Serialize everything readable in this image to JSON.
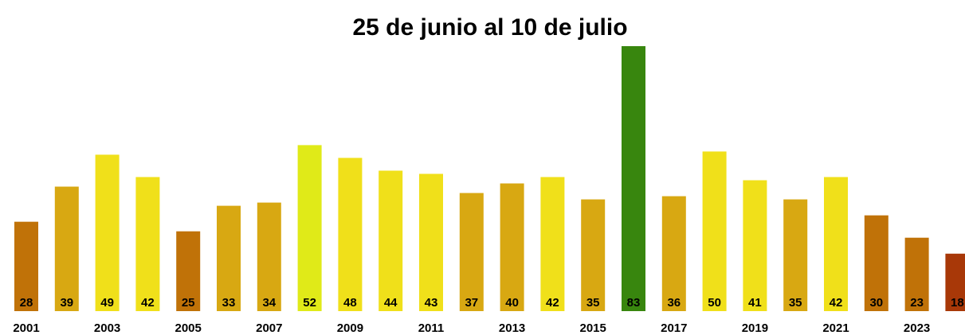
{
  "chart_data": {
    "type": "bar",
    "title": "25 de junio al 10 de julio",
    "categories": [
      "2001",
      null,
      "2003",
      null,
      "2005",
      null,
      "2007",
      null,
      "2009",
      null,
      "2011",
      null,
      "2013",
      null,
      "2015",
      null,
      "2017",
      null,
      "2019",
      null,
      "2021",
      null,
      "2023",
      null
    ],
    "values": [
      28,
      39,
      49,
      42,
      25,
      33,
      34,
      52,
      48,
      44,
      43,
      37,
      40,
      42,
      35,
      83,
      36,
      50,
      41,
      35,
      42,
      30,
      23,
      18
    ],
    "colors": [
      "#c07208",
      "#d8a812",
      "#f0e01a",
      "#f0e01a",
      "#c07208",
      "#d8a812",
      "#d8a812",
      "#e0ea18",
      "#f0e01a",
      "#f0e01a",
      "#f0e01a",
      "#d8a812",
      "#d8a812",
      "#f0e01a",
      "#d8a812",
      "#38860e",
      "#d8a812",
      "#f0e01a",
      "#f0e01a",
      "#d8a812",
      "#f0e01a",
      "#c07208",
      "#c07208",
      "#a83808"
    ]
  }
}
